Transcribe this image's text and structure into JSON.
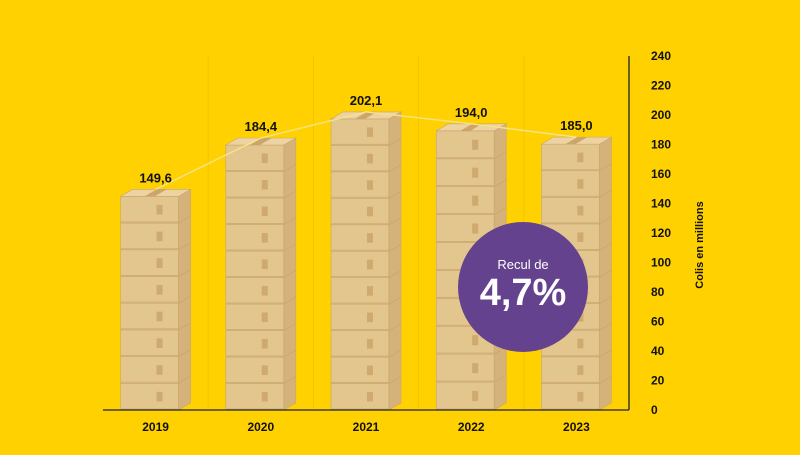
{
  "chart_data": {
    "type": "bar",
    "categories": [
      "2019",
      "2020",
      "2021",
      "2022",
      "2023"
    ],
    "values": [
      149.6,
      184.4,
      202.1,
      194.0,
      185.0
    ],
    "value_labels": [
      "149,6",
      "184,4",
      "202,1",
      "194,0",
      "185,0"
    ],
    "ylabel": "Colis en millions",
    "ylim": [
      0,
      240
    ],
    "yticks": [
      "0",
      "20",
      "40",
      "60",
      "80",
      "100",
      "120",
      "140",
      "160",
      "180",
      "200",
      "220",
      "240"
    ],
    "yaxis_side": "right",
    "grid": "vertical separators",
    "trend_line": true,
    "bar_style": "stacked parcel boxes"
  },
  "badge": {
    "line1": "Recul de",
    "line2": "4,7%"
  },
  "colors": {
    "background": "#FFD100",
    "box_front": "#E3C58E",
    "box_side": "#D4B27A",
    "box_top": "#EDD3A2",
    "tape": "#CBA56A",
    "badge": "#65428E",
    "trend_line": "#F5E38A",
    "axis": "#222222"
  }
}
